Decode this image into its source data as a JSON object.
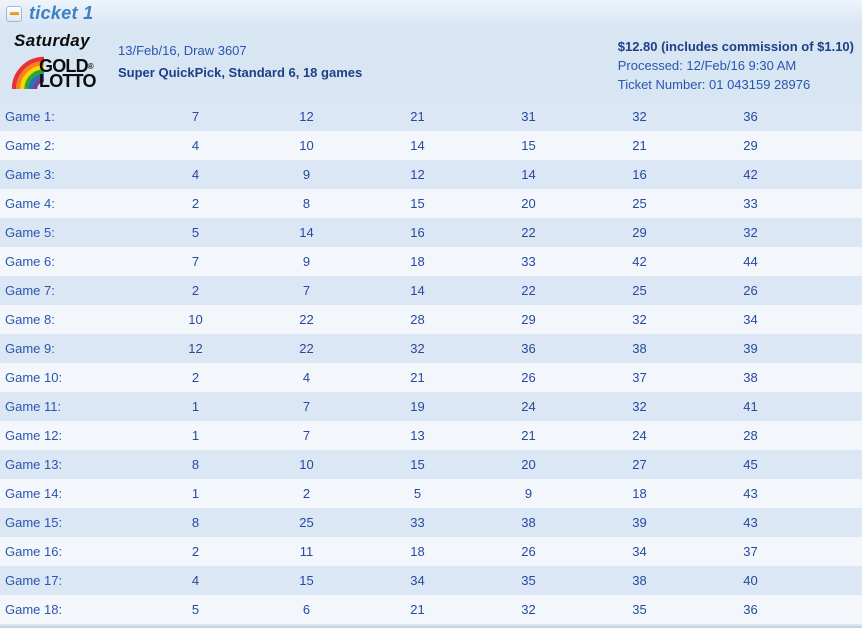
{
  "header": {
    "title": "ticket 1",
    "collapse_icon": "minus"
  },
  "ticket": {
    "logo": {
      "day": "Saturday",
      "word1": "GOLD",
      "registered": "®",
      "word2": "LOTTO"
    },
    "draw_line": "13/Feb/16, Draw 3607",
    "type_line": "Super QuickPick, Standard 6, 18 games",
    "price_line": "$12.80 (includes commission of $1.10)",
    "processed_line": "Processed: 12/Feb/16 9:30 AM",
    "ticket_number_line": "Ticket Number: 01 043159 28976"
  },
  "games": [
    {
      "label": "Game 1:",
      "numbers": [
        7,
        12,
        21,
        31,
        32,
        36
      ]
    },
    {
      "label": "Game 2:",
      "numbers": [
        4,
        10,
        14,
        15,
        21,
        29
      ]
    },
    {
      "label": "Game 3:",
      "numbers": [
        4,
        9,
        12,
        14,
        16,
        42
      ]
    },
    {
      "label": "Game 4:",
      "numbers": [
        2,
        8,
        15,
        20,
        25,
        33
      ]
    },
    {
      "label": "Game 5:",
      "numbers": [
        5,
        14,
        16,
        22,
        29,
        32
      ]
    },
    {
      "label": "Game 6:",
      "numbers": [
        7,
        9,
        18,
        33,
        42,
        44
      ]
    },
    {
      "label": "Game 7:",
      "numbers": [
        2,
        7,
        14,
        22,
        25,
        26
      ]
    },
    {
      "label": "Game 8:",
      "numbers": [
        10,
        22,
        28,
        29,
        32,
        34
      ]
    },
    {
      "label": "Game 9:",
      "numbers": [
        12,
        22,
        32,
        36,
        38,
        39
      ]
    },
    {
      "label": "Game 10:",
      "numbers": [
        2,
        4,
        21,
        26,
        37,
        38
      ]
    },
    {
      "label": "Game 11:",
      "numbers": [
        1,
        7,
        19,
        24,
        32,
        41
      ]
    },
    {
      "label": "Game 12:",
      "numbers": [
        1,
        7,
        13,
        21,
        24,
        28
      ]
    },
    {
      "label": "Game 13:",
      "numbers": [
        8,
        10,
        15,
        20,
        27,
        45
      ]
    },
    {
      "label": "Game 14:",
      "numbers": [
        1,
        2,
        5,
        9,
        18,
        43
      ]
    },
    {
      "label": "Game 15:",
      "numbers": [
        8,
        25,
        33,
        38,
        39,
        43
      ]
    },
    {
      "label": "Game 16:",
      "numbers": [
        2,
        11,
        18,
        26,
        34,
        37
      ]
    },
    {
      "label": "Game 17:",
      "numbers": [
        4,
        15,
        34,
        35,
        38,
        40
      ]
    },
    {
      "label": "Game 18:",
      "numbers": [
        5,
        6,
        21,
        32,
        35,
        36
      ]
    }
  ],
  "colors": {
    "accent_blue": "#3b82c4",
    "row_dark": "#dbe7f5",
    "row_light": "#f3f7fc",
    "text_navy": "#1c3f87",
    "text_blue": "#2a57ad",
    "minus_orange": "#f2a32a",
    "rainbow": [
      "#e53238",
      "#f5821f",
      "#fdd400",
      "#27a83d",
      "#2e6fb7",
      "#7d3f98"
    ]
  }
}
